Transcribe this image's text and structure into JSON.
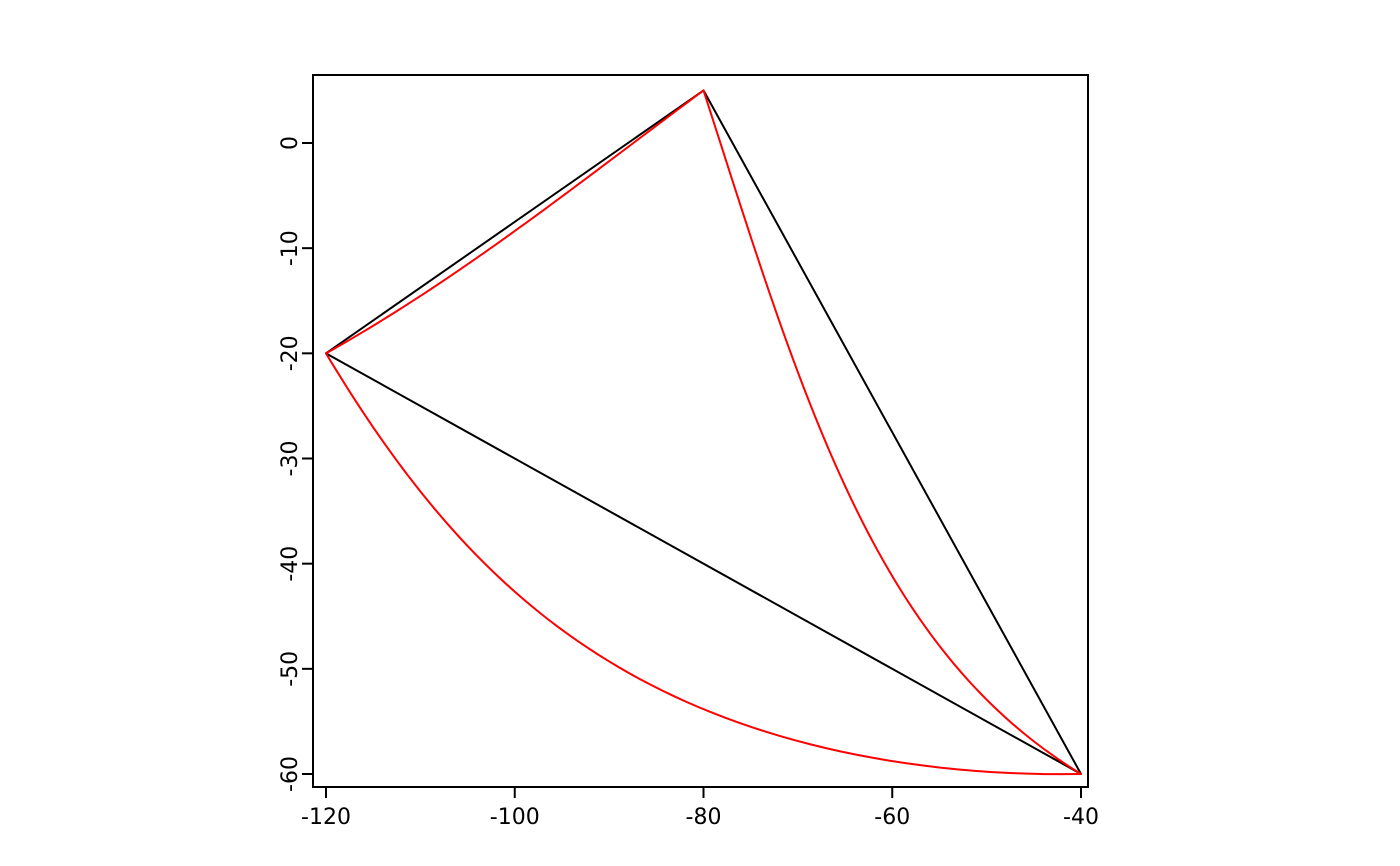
{
  "page": {
    "background": "#ffffff"
  },
  "chart_data": {
    "type": "line",
    "title": "",
    "xlabel": "",
    "ylabel": "",
    "x_tick_values": [
      -120,
      -100,
      -80,
      -60,
      -40
    ],
    "x_tick_labels": [
      "-120",
      "-100",
      "-80",
      "-60",
      "-40"
    ],
    "y_tick_values": [
      0,
      -10,
      -20,
      -30,
      -40,
      -50,
      -60
    ],
    "y_tick_labels": [
      "0",
      "-10",
      "-20",
      "-30",
      "-40",
      "-50",
      "-60"
    ],
    "xlim": [
      -121.4,
      -39.3
    ],
    "ylim": [
      -61.5,
      6.5
    ],
    "grid": false,
    "legend": "none",
    "axis_color": "#000000",
    "background": "#ffffff",
    "description": "Triangle with vertices joined by straight chords (black) and great-circle geodesic arcs (red) in longitude/latitude coordinates",
    "vertices": [
      [
        -120,
        -20
      ],
      [
        -80,
        5
      ],
      [
        -40,
        -60
      ]
    ],
    "series": [
      {
        "name": "straight-edges",
        "style": "straight",
        "color": "#000000",
        "width": 2,
        "points": [
          [
            -120,
            -20
          ],
          [
            -80,
            5
          ],
          [
            -40,
            -60
          ],
          [
            -120,
            -20
          ]
        ]
      },
      {
        "name": "geodesic-edges",
        "style": "great-circle",
        "color": "#ff0000",
        "width": 2,
        "segments": [
          {
            "from": [
              -120,
              -20
            ],
            "to": [
              -80,
              5
            ],
            "midpoint": [
              -99.4,
              -8.0
            ]
          },
          {
            "from": [
              -80,
              5
            ],
            "to": [
              -40,
              -60
            ],
            "midpoint": [
              -66.9,
              -28.8
            ]
          },
          {
            "from": [
              -120,
              -20
            ],
            "to": [
              -40,
              -60
            ],
            "midpoint": [
              -94.4,
              -46.7
            ]
          }
        ]
      }
    ]
  }
}
